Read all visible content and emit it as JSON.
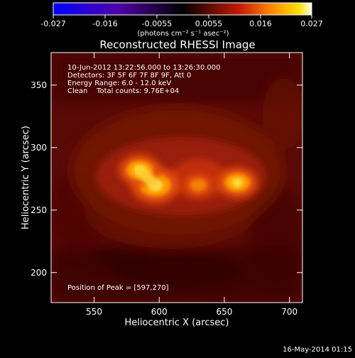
{
  "colorbar": {
    "ticks": [
      "-0.027",
      "-0.016",
      "-0.0055",
      "0.0055",
      "0.016",
      "0.027"
    ],
    "unit_label": "(photons cm⁻² s⁻¹ asec⁻²)"
  },
  "title": "Reconstructed RHESSI Image",
  "annotations": [
    "10-Jun-2012 13:22:56.000 to 13:26:30.000",
    "Detectors: 3F 5F 6F 7F 8F 9F, Att 0",
    "Energy Range: 6.0 - 12.0 keV",
    "Clean    Total counts: 9.76E+04"
  ],
  "peak_label": "Position of Peak = [597,270]",
  "footer_date": "16-May-2014 01:15",
  "chart_data": {
    "type": "heatmap",
    "title": "Reconstructed RHESSI Image",
    "xlabel": "Heliocentric X (arcsec)",
    "ylabel": "Heliocentric Y (arcsec)",
    "xlim": [
      517,
      710
    ],
    "ylim": [
      176,
      376
    ],
    "x_ticks": [
      550,
      600,
      650,
      700
    ],
    "y_ticks": [
      200,
      250,
      300,
      350
    ],
    "x_tick_labels": [
      "550",
      "600",
      "650",
      "700"
    ],
    "y_tick_labels": [
      "200",
      "250",
      "300",
      "350"
    ],
    "colorbar_range": [
      -0.027,
      0.027
    ],
    "colorbar_ticks": [
      -0.027,
      -0.016,
      -0.0055,
      0.0055,
      0.016,
      0.027
    ],
    "colormap": "rhessi-fire",
    "sources": [
      {
        "x": 597,
        "y": 270,
        "peak": 0.027
      },
      {
        "x": 585,
        "y": 282,
        "peak": 0.022
      },
      {
        "x": 660,
        "y": 272,
        "peak": 0.021
      },
      {
        "x": 630,
        "y": 270,
        "peak": 0.012
      }
    ],
    "peak_position": [
      597,
      270
    ]
  }
}
